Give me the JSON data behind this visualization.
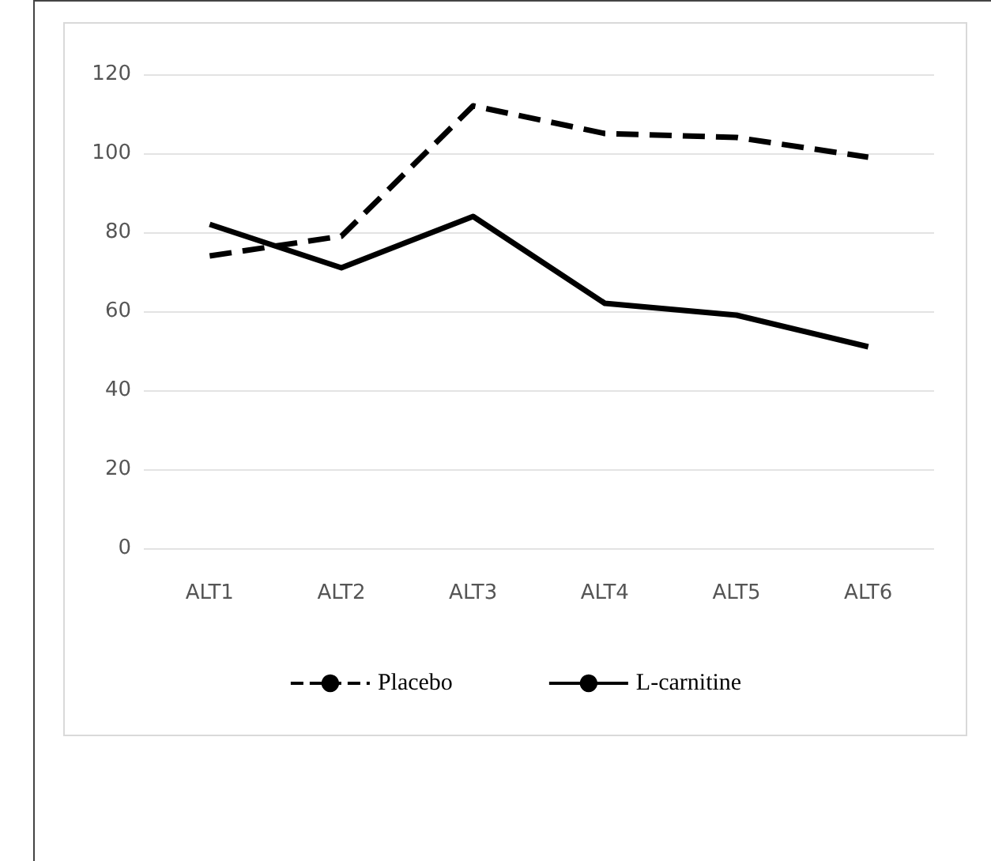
{
  "chart_data": {
    "type": "line",
    "categories": [
      "ALT1",
      "ALT2",
      "ALT3",
      "ALT4",
      "ALT5",
      "ALT6"
    ],
    "series": [
      {
        "name": "Placebo",
        "color": "#000000",
        "line_style": "dashed",
        "values": [
          74,
          79,
          112,
          105,
          104,
          99
        ]
      },
      {
        "name": "L-carnitine",
        "color": "#000000",
        "line_style": "solid",
        "values": [
          82,
          71,
          84,
          62,
          59,
          51
        ]
      }
    ],
    "ylim": [
      0,
      120
    ],
    "yticks": [
      0,
      20,
      40,
      60,
      80,
      100,
      120
    ],
    "grid": "y",
    "legend": "bottom",
    "marker": "none"
  }
}
